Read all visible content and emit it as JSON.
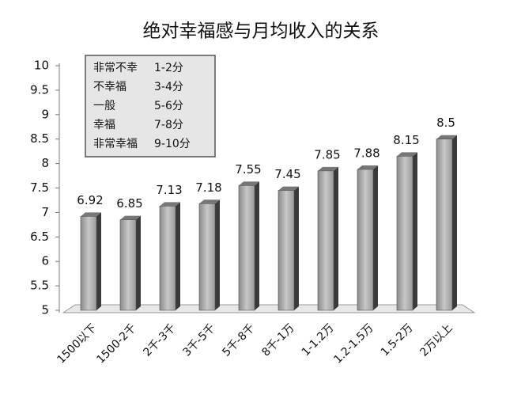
{
  "chart_data": {
    "type": "bar",
    "title": "绝对幸福感与月均收入的关系",
    "categories": [
      "1500以下",
      "1500-2千",
      "2千-3千",
      "3千-5千",
      "5千-8千",
      "8千-1万",
      "1-1.2万",
      "1.2-1.5万",
      "1.5-2万",
      "2万以上"
    ],
    "values": [
      6.92,
      6.85,
      7.13,
      7.18,
      7.55,
      7.45,
      7.85,
      7.88,
      8.15,
      8.5
    ],
    "color": "#a6a6a6",
    "ylim": [
      5,
      10
    ],
    "yticks": [
      5,
      5.5,
      6,
      6.5,
      7,
      7.5,
      8,
      8.5,
      9,
      9.5,
      10
    ],
    "grid": false,
    "annotations": [
      [
        "非常不幸",
        "1-2分"
      ],
      [
        "不幸福",
        "3-4分"
      ],
      [
        "一般",
        "5-6分"
      ],
      [
        "幸福",
        "7-8分"
      ],
      [
        "非常幸福",
        "9-10分"
      ]
    ]
  }
}
